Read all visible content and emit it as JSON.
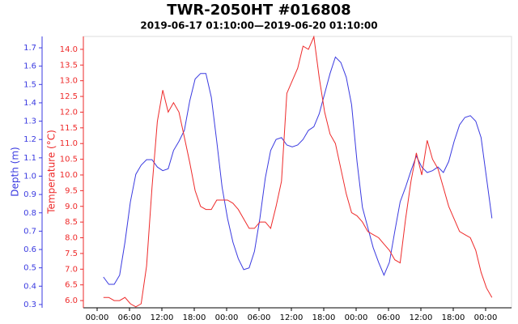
{
  "chart_data": {
    "type": "line",
    "title": "TWR-2050HT #016808",
    "subtitle": "2019-06-17 01:10:00—2019-06-20 01:10:00",
    "y_label": "Depth (m)",
    "y2_label": "Temperature (°C)",
    "x": [
      "2019-06-17 01:10",
      "2019-06-17 02:10",
      "2019-06-17 03:10",
      "2019-06-17 04:10",
      "2019-06-17 05:10",
      "2019-06-17 06:10",
      "2019-06-17 07:10",
      "2019-06-17 08:10",
      "2019-06-17 09:10",
      "2019-06-17 10:10",
      "2019-06-17 11:10",
      "2019-06-17 12:10",
      "2019-06-17 13:10",
      "2019-06-17 14:10",
      "2019-06-17 15:10",
      "2019-06-17 16:10",
      "2019-06-17 17:10",
      "2019-06-17 18:10",
      "2019-06-17 19:10",
      "2019-06-17 20:10",
      "2019-06-17 21:10",
      "2019-06-17 22:10",
      "2019-06-17 23:10",
      "2019-06-18 00:10",
      "2019-06-18 01:10",
      "2019-06-18 02:10",
      "2019-06-18 03:10",
      "2019-06-18 04:10",
      "2019-06-18 05:10",
      "2019-06-18 06:10",
      "2019-06-18 07:10",
      "2019-06-18 08:10",
      "2019-06-18 09:10",
      "2019-06-18 10:10",
      "2019-06-18 11:10",
      "2019-06-18 12:10",
      "2019-06-18 13:10",
      "2019-06-18 14:10",
      "2019-06-18 15:10",
      "2019-06-18 16:10",
      "2019-06-18 17:10",
      "2019-06-18 18:10",
      "2019-06-18 19:10",
      "2019-06-18 20:10",
      "2019-06-18 21:10",
      "2019-06-18 22:10",
      "2019-06-18 23:10",
      "2019-06-19 00:10",
      "2019-06-19 01:10",
      "2019-06-19 02:10",
      "2019-06-19 03:10",
      "2019-06-19 04:10",
      "2019-06-19 05:10",
      "2019-06-19 06:10",
      "2019-06-19 07:10",
      "2019-06-19 08:10",
      "2019-06-19 09:10",
      "2019-06-19 10:10",
      "2019-06-19 11:10",
      "2019-06-19 12:10",
      "2019-06-19 13:10",
      "2019-06-19 14:10",
      "2019-06-19 15:10",
      "2019-06-19 16:10",
      "2019-06-19 17:10",
      "2019-06-19 18:10",
      "2019-06-19 19:10",
      "2019-06-19 20:10",
      "2019-06-19 21:10",
      "2019-06-19 22:10",
      "2019-06-19 23:10",
      "2019-06-20 00:10",
      "2019-06-20 01:10"
    ],
    "series": [
      {
        "name": "Depth (m)",
        "color": "#3a3ae0",
        "axis": "y",
        "values": [
          0.45,
          0.41,
          0.41,
          0.46,
          0.64,
          0.86,
          1.01,
          1.06,
          1.09,
          1.09,
          1.05,
          1.03,
          1.04,
          1.14,
          1.19,
          1.25,
          1.41,
          1.53,
          1.56,
          1.56,
          1.43,
          1.19,
          0.94,
          0.77,
          0.64,
          0.55,
          0.49,
          0.5,
          0.59,
          0.77,
          0.99,
          1.14,
          1.2,
          1.21,
          1.17,
          1.16,
          1.17,
          1.2,
          1.25,
          1.27,
          1.34,
          1.45,
          1.56,
          1.65,
          1.62,
          1.54,
          1.39,
          1.08,
          0.83,
          0.72,
          0.61,
          0.53,
          0.46,
          0.53,
          0.7,
          0.86,
          0.94,
          1.03,
          1.11,
          1.05,
          1.02,
          1.03,
          1.05,
          1.02,
          1.08,
          1.19,
          1.28,
          1.32,
          1.33,
          1.3,
          1.21,
          0.99,
          0.77
        ]
      },
      {
        "name": "Temperature (°C)",
        "color": "#ee2a2a",
        "axis": "y2",
        "values": [
          6.1,
          6.1,
          6.0,
          6.0,
          6.1,
          5.9,
          5.8,
          5.9,
          7.1,
          9.6,
          11.7,
          12.7,
          12.0,
          12.3,
          12.0,
          11.2,
          10.4,
          9.5,
          9.0,
          8.9,
          8.9,
          9.2,
          9.2,
          9.2,
          9.1,
          8.9,
          8.6,
          8.3,
          8.3,
          8.5,
          8.5,
          8.3,
          9.0,
          9.8,
          12.6,
          13.0,
          13.4,
          14.1,
          14.0,
          14.4,
          13.1,
          12.0,
          11.3,
          11.0,
          10.2,
          9.4,
          8.8,
          8.7,
          8.5,
          8.2,
          8.1,
          8.0,
          7.8,
          7.6,
          7.3,
          7.2,
          8.6,
          9.8,
          10.7,
          10.0,
          11.1,
          10.5,
          10.2,
          9.6,
          9.0,
          8.6,
          8.2,
          8.1,
          8.0,
          7.6,
          6.9,
          6.4,
          6.1
        ]
      }
    ],
    "xlim": [
      "2019-06-16 21:27",
      "2019-06-20 04:48"
    ],
    "xticks": [
      {
        "value": "2019-06-17 00:00",
        "label": "00:00"
      },
      {
        "value": "2019-06-17 06:00",
        "label": "06:00"
      },
      {
        "value": "2019-06-17 12:00",
        "label": "12:00"
      },
      {
        "value": "2019-06-17 18:00",
        "label": "18:00"
      },
      {
        "value": "2019-06-18 00:00",
        "label": "00:00"
      },
      {
        "value": "2019-06-18 06:00",
        "label": "06:00"
      },
      {
        "value": "2019-06-18 12:00",
        "label": "12:00"
      },
      {
        "value": "2019-06-18 18:00",
        "label": "18:00"
      },
      {
        "value": "2019-06-19 00:00",
        "label": "00:00"
      },
      {
        "value": "2019-06-19 06:00",
        "label": "06:00"
      },
      {
        "value": "2019-06-19 12:00",
        "label": "12:00"
      },
      {
        "value": "2019-06-19 18:00",
        "label": "18:00"
      },
      {
        "value": "2019-06-20 00:00",
        "label": "00:00"
      }
    ],
    "ylim": [
      0.282,
      1.762
    ],
    "yticks": [
      0.3,
      0.4,
      0.5,
      0.6,
      0.7,
      0.8,
      0.9,
      {
        "value": 1,
        "label": "1.0"
      },
      1.1,
      1.2,
      1.3,
      1.4,
      1.5,
      1.6,
      1.7
    ],
    "y2lim": [
      5.77,
      14.41
    ],
    "y2ticks": [
      {
        "value": 6,
        "label": "6.0"
      },
      6.5,
      {
        "value": 7,
        "label": "7.0"
      },
      7.5,
      {
        "value": 8,
        "label": "8.0"
      },
      8.5,
      {
        "value": 9,
        "label": "9.0"
      },
      9.5,
      {
        "value": 10,
        "label": "10.0"
      },
      10.5,
      {
        "value": 11,
        "label": "11.0"
      },
      11.5,
      {
        "value": 12,
        "label": "12.0"
      },
      12.5,
      {
        "value": 13,
        "label": "13.0"
      },
      13.5,
      {
        "value": 14,
        "label": "14.0"
      }
    ],
    "grid": false
  }
}
